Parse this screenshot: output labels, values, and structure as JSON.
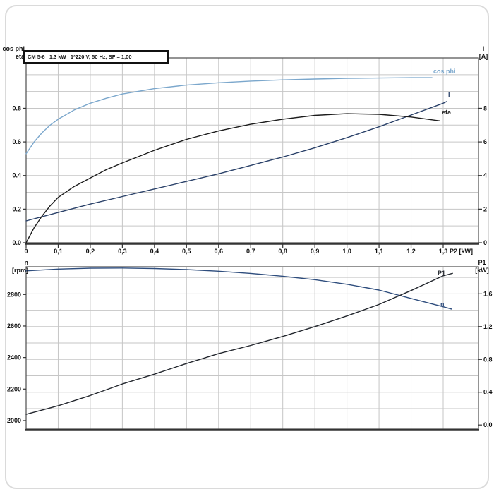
{
  "chart_data": [
    {
      "name": "motor-electrical",
      "type": "line",
      "title_box": "CM 5-6   1.3 kW   1*220 V, 50 Hz, SF = 1,00",
      "axis_labels": {
        "left": [
          "cos phi",
          "eta"
        ],
        "right": [
          "I",
          "[A]"
        ],
        "x_suffix": "P2 [kW]"
      },
      "x_axis": {
        "label": "P2 [kW]",
        "min": 0,
        "max": 1.41,
        "tick_values": [
          0,
          0.1,
          0.2,
          0.3,
          0.4,
          0.5,
          0.6,
          0.7,
          0.8,
          0.9,
          1.0,
          1.1,
          1.2,
          1.3
        ],
        "tick_labels": [
          "0",
          "0,1",
          "0,2",
          "0,3",
          "0,4",
          "0,5",
          "0,6",
          "0,7",
          "0,8",
          "0,9",
          "1,0",
          "1,1",
          "1,2",
          "1,3"
        ]
      },
      "left_axis": {
        "min": 0,
        "max": 1.1,
        "tick_values": [
          0,
          0.2,
          0.4,
          0.6,
          0.8
        ],
        "tick_labels": [
          "0.0",
          "0.2",
          "0.4",
          "0.6",
          "0.8"
        ]
      },
      "right_axis": {
        "min": 0,
        "max": 11,
        "tick_values": [
          0,
          2,
          4,
          6,
          8
        ],
        "tick_labels": [
          "0",
          "2",
          "4",
          "6",
          "8"
        ]
      },
      "series": [
        {
          "name": "cos phi",
          "axis": "left",
          "color": "#7ba7cc",
          "x": [
            0,
            0.025,
            0.05,
            0.075,
            0.1,
            0.15,
            0.2,
            0.25,
            0.3,
            0.4,
            0.5,
            0.6,
            0.7,
            0.8,
            0.9,
            1.0,
            1.1,
            1.2,
            1.265
          ],
          "y": [
            0.53,
            0.6,
            0.655,
            0.7,
            0.735,
            0.79,
            0.83,
            0.86,
            0.885,
            0.917,
            0.938,
            0.952,
            0.962,
            0.969,
            0.974,
            0.978,
            0.98,
            0.982,
            0.982
          ]
        },
        {
          "name": "I",
          "axis": "right",
          "color": "#2a4169",
          "x": [
            0,
            0.1,
            0.2,
            0.3,
            0.4,
            0.5,
            0.6,
            0.7,
            0.8,
            0.9,
            1.0,
            1.1,
            1.2,
            1.3,
            1.311
          ],
          "y": [
            1.3,
            1.8,
            2.3,
            2.75,
            3.2,
            3.65,
            4.1,
            4.6,
            5.1,
            5.65,
            6.25,
            6.9,
            7.6,
            8.3,
            8.4
          ]
        },
        {
          "name": "eta",
          "axis": "left",
          "color": "#1c1c1c",
          "x": [
            0,
            0.025,
            0.05,
            0.075,
            0.1,
            0.15,
            0.2,
            0.25,
            0.3,
            0.4,
            0.5,
            0.6,
            0.7,
            0.8,
            0.9,
            1.0,
            1.1,
            1.2,
            1.29
          ],
          "y": [
            0,
            0.09,
            0.16,
            0.22,
            0.27,
            0.335,
            0.385,
            0.435,
            0.475,
            0.55,
            0.615,
            0.665,
            0.705,
            0.735,
            0.758,
            0.768,
            0.764,
            0.748,
            0.725
          ]
        }
      ]
    },
    {
      "name": "motor-speed-power",
      "type": "line",
      "axis_labels": {
        "left": [
          "n",
          "[rpm]"
        ],
        "right": [
          "P1",
          "[kW]"
        ]
      },
      "x_axis": {
        "min": 0,
        "max": 1.41,
        "tick_values": [],
        "tick_labels": []
      },
      "left_axis": {
        "min": 1946,
        "max": 2976,
        "tick_values": [
          2000,
          2200,
          2400,
          2600,
          2800
        ],
        "tick_labels": [
          "2000",
          "2200",
          "2400",
          "2600",
          "2800"
        ]
      },
      "right_axis": {
        "min": -0.05,
        "max": 1.93,
        "tick_values": [
          0,
          0.4,
          0.8,
          1.2,
          1.6
        ],
        "tick_labels": [
          "0.0",
          "0.4",
          "0.8",
          "1.2",
          "1.6"
        ]
      },
      "series": [
        {
          "name": "n",
          "axis": "left",
          "color": "#2e4d7d",
          "x": [
            0,
            0.1,
            0.2,
            0.3,
            0.4,
            0.5,
            0.6,
            0.7,
            0.8,
            0.9,
            1.0,
            1.1,
            1.2,
            1.3,
            1.327
          ],
          "y": [
            2950,
            2961,
            2967,
            2968,
            2965,
            2958,
            2948,
            2934,
            2916,
            2894,
            2865,
            2828,
            2775,
            2722,
            2707
          ]
        },
        {
          "name": "P1",
          "axis": "right",
          "color": "#23272e",
          "x": [
            0,
            0.1,
            0.2,
            0.3,
            0.4,
            0.5,
            0.6,
            0.7,
            0.8,
            0.9,
            1.0,
            1.1,
            1.2,
            1.3,
            1.329
          ],
          "y": [
            0.13,
            0.235,
            0.36,
            0.5,
            0.62,
            0.75,
            0.87,
            0.97,
            1.08,
            1.2,
            1.33,
            1.47,
            1.64,
            1.82,
            1.85
          ]
        }
      ]
    }
  ]
}
